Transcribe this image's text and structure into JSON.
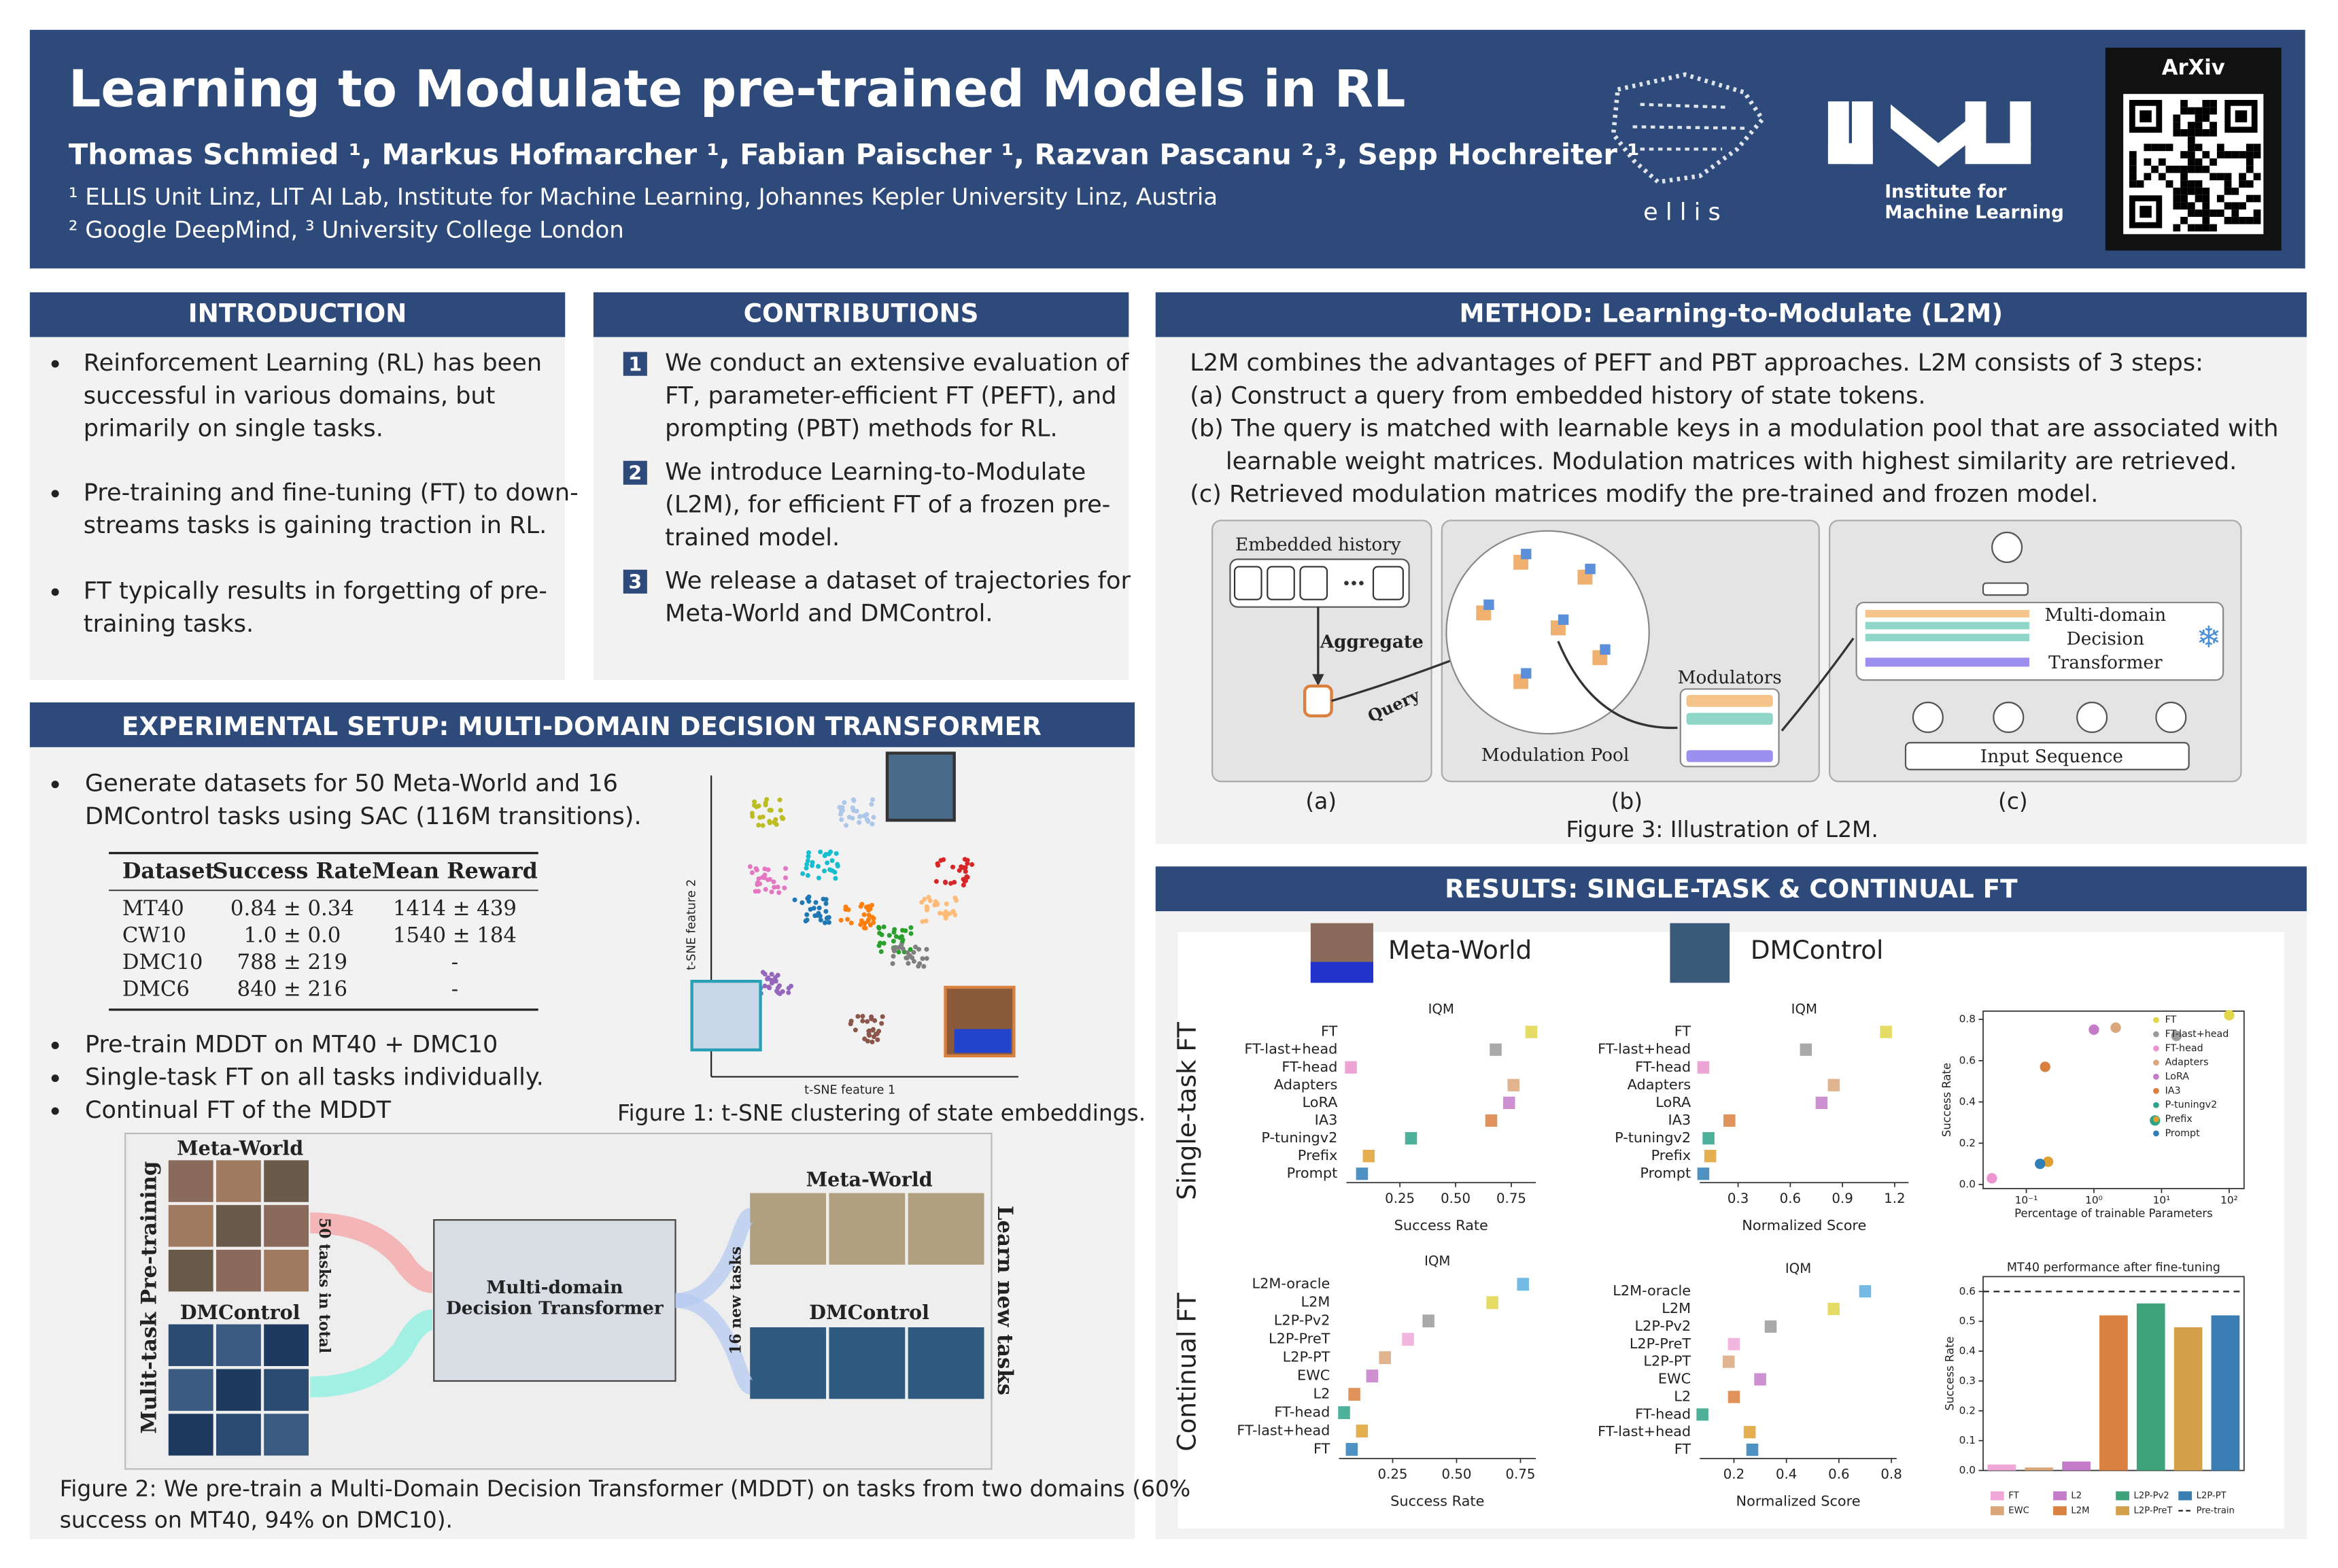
{
  "header": {
    "title": "Learning to Modulate pre-trained Models in RL",
    "authors": "Thomas Schmied ¹, Markus Hofmarcher ¹, Fabian Paischer ¹, Razvan Pascanu ²,³, Sepp Hochreiter ¹",
    "affiliations": [
      "¹ ELLIS Unit Linz, LIT AI Lab, Institute for Machine Learning, Johannes Kepler University Linz, Austria",
      "² Google DeepMind, ³ University College London"
    ],
    "ellis": "e l l i s",
    "jku": [
      "Institute for",
      "Machine Learning"
    ],
    "arxiv": "ArXiv"
  },
  "introduction": {
    "heading": "INTRODUCTION",
    "bullets": [
      [
        "Reinforcement Learning (RL) has been",
        "successful in various domains, but",
        "primarily on single tasks."
      ],
      [
        "Pre-training and fine-tuning (FT) to down-",
        "streams tasks is gaining traction in RL."
      ],
      [
        "FT typically results in forgetting of pre-",
        "training tasks."
      ]
    ]
  },
  "contributions": {
    "heading": "CONTRIBUTIONS",
    "items": [
      {
        "number": "1",
        "lines": [
          "We conduct an extensive evaluation of",
          "FT, parameter-efficient FT (PEFT), and",
          "prompting (PBT) methods for RL."
        ]
      },
      {
        "number": "2",
        "lines": [
          "We introduce Learning-to-Modulate",
          "(L2M), for efficient FT of a frozen pre-",
          "trained model."
        ]
      },
      {
        "number": "3",
        "lines": [
          "We release a dataset of trajectories for",
          "Meta-World and DMControl."
        ]
      }
    ]
  },
  "method": {
    "heading": "METHOD: Learning-to-Modulate (L2M)",
    "lines": [
      "L2M combines the advantages of PEFT and PBT approaches. L2M consists of 3 steps:",
      "(a) Construct a query from embedded history of state tokens.",
      "(b) The query is matched with learnable keys in a modulation pool that are associated with",
      "learnable weight matrices. Modulation matrices with highest similarity are retrieved.",
      "(c) Retrieved modulation matrices modify the pre-trained and frozen model."
    ],
    "figure": {
      "embedded_history": "Embedded history",
      "aggregate": "Aggregate",
      "query": "Query",
      "modulation_pool": "Modulation Pool",
      "modulators": "Modulators",
      "transformer": [
        "Multi-domain",
        "Decision",
        "Transformer"
      ],
      "input_sequence": "Input Sequence",
      "panels": [
        "(a)",
        "(b)",
        "(c)"
      ],
      "caption": "Figure 3: Illustration of L2M."
    }
  },
  "setup": {
    "heading": "EXPERIMENTAL SETUP: MULTI-DOMAIN DECISION TRANSFORMER",
    "bullets_top": [
      [
        "Generate datasets for 50 Meta-World and 16",
        "DMControl tasks using SAC (116M transitions)."
      ]
    ],
    "table": {
      "header": [
        "Dataset",
        "Success Rate",
        "Mean Reward"
      ],
      "rows": [
        [
          "MT40",
          "0.84 ± 0.34",
          "1414 ± 439"
        ],
        [
          "CW10",
          "1.0 ± 0.0",
          "1540 ± 184"
        ],
        [
          "DMC10",
          "788 ± 219",
          "-"
        ],
        [
          "DMC6",
          "840 ± 216",
          "-"
        ]
      ]
    },
    "bullets_bottom": [
      "Pre-train MDDT on MT40 + DMC10",
      "Single-task FT on all tasks individually.",
      "Continual FT of the MDDT"
    ],
    "figure1": {
      "xlabel": "t-SNE feature 1",
      "ylabel": "t-SNE feature 2",
      "caption": "Figure 1: t-SNE clustering of state embeddings."
    },
    "figure2": {
      "meta_world_left": "Meta-World",
      "dmcontrol_left": "DMControl",
      "pretraining": "Mulit-task Pre-training",
      "tasks_total": "50 tasks in total",
      "model": [
        "Multi-domain",
        "Decision Transformer"
      ],
      "new_tasks": "16 new tasks",
      "meta_world_right": "Meta-World",
      "dmcontrol_right": "DMControl",
      "learn": "Learn new tasks",
      "caption": [
        "Figure 2: We pre-train a Multi-Domain Decision Transformer (MDDT) on tasks from two domains (60%",
        "success on MT40, 94% on DMC10)."
      ]
    }
  },
  "results": {
    "heading": "RESULTS: SINGLE-TASK & CONTINUAL FT",
    "columns": [
      "Meta-World",
      "DMControl"
    ],
    "rows": [
      "Single-task FT",
      "Continual FT"
    ]
  },
  "chart_data": [
    {
      "type": "bar",
      "orientation": "horizontal",
      "title": "IQM",
      "xlabel": "Success Rate",
      "categories": [
        "FT",
        "FT-last+head",
        "FT-head",
        "Adapters",
        "LoRA",
        "IA3",
        "P-tuningv2",
        "Prefix",
        "Prompt"
      ],
      "values": [
        0.84,
        0.68,
        0.03,
        0.76,
        0.74,
        0.66,
        0.3,
        0.11,
        0.08
      ],
      "colors": [
        "#e2d64a",
        "#9a9a9a",
        "#ec94cf",
        "#d9a77a",
        "#c47cc9",
        "#d9803e",
        "#2ea38a",
        "#e0a030",
        "#2f7fb8"
      ],
      "xlim": [
        0.01,
        0.86
      ],
      "xticks": [
        0.25,
        {
          "value": 0.5,
          "label": "0.50"
        },
        0.75
      ]
    },
    {
      "type": "bar",
      "orientation": "horizontal",
      "title": "IQM",
      "xlabel": "Normalized Score",
      "categories": [
        "FT",
        "FT-last+head",
        "FT-head",
        "Adapters",
        "LoRA",
        "IA3",
        "P-tuningv2",
        "Prefix",
        "Prompt"
      ],
      "values": [
        1.15,
        0.69,
        0.1,
        0.85,
        0.78,
        0.25,
        0.13,
        0.14,
        0.1
      ],
      "colors": [
        "#e2d64a",
        "#9a9a9a",
        "#ec94cf",
        "#d9a77a",
        "#c47cc9",
        "#d9803e",
        "#2ea38a",
        "#e0a030",
        "#2f7fb8"
      ],
      "xlim": [
        0.08,
        1.28
      ],
      "xticks": [
        0.3,
        0.6,
        0.9,
        1.2
      ]
    },
    {
      "type": "bar",
      "orientation": "horizontal",
      "title": "IQM",
      "xlabel": "Success Rate",
      "categories": [
        "L2M-oracle",
        "L2M",
        "L2P-Pv2",
        "L2P-PreT",
        "L2P-PT",
        "EWC",
        "L2",
        "FT-head",
        "FT-last+head",
        "FT"
      ],
      "values": [
        0.76,
        0.64,
        0.39,
        0.31,
        0.22,
        0.17,
        0.1,
        0.06,
        0.13,
        0.09
      ],
      "colors": [
        "#5aaee0",
        "#e2d64a",
        "#9a9a9a",
        "#f0a8d8",
        "#d9a77a",
        "#c47cc9",
        "#d9803e",
        "#2ea38a",
        "#e0a030",
        "#2f7fb8"
      ],
      "xlim": [
        0.04,
        0.81
      ],
      "xticks": [
        0.25,
        {
          "value": 0.5,
          "label": "0.50"
        },
        0.75
      ]
    },
    {
      "type": "bar",
      "orientation": "horizontal",
      "title": "IQM",
      "xlabel": "Normalized Score",
      "categories": [
        "L2M-oracle",
        "L2M",
        "L2P-Pv2",
        "L2P-PreT",
        "L2P-PT",
        "EWC",
        "L2",
        "FT-head",
        "FT-last+head",
        "FT"
      ],
      "values": [
        0.7,
        0.58,
        0.34,
        0.2,
        0.18,
        0.3,
        0.2,
        0.08,
        0.26,
        0.27
      ],
      "colors": [
        "#5aaee0",
        "#e2d64a",
        "#9a9a9a",
        "#f0a8d8",
        "#d9a77a",
        "#c47cc9",
        "#d9803e",
        "#2ea38a",
        "#e0a030",
        "#2f7fb8"
      ],
      "xlim": [
        0.07,
        0.82
      ],
      "xticks": [
        0.2,
        0.4,
        0.6,
        0.8
      ]
    },
    {
      "type": "scatter",
      "xlabel": "Percentage of trainable Parameters",
      "ylabel": "Success Rate",
      "xscale": "log",
      "categories": [
        "FT",
        "FT-last+head",
        "FT-head",
        "Adapters",
        "LoRA",
        "IA3",
        "P-tuningv2",
        "Prefix",
        "Prompt"
      ],
      "x": [
        100,
        16.6,
        0.031,
        2.1,
        1,
        0.19,
        8,
        0.21,
        0.16
      ],
      "values": [
        0.82,
        0.72,
        0.03,
        0.76,
        0.75,
        0.57,
        0.31,
        0.11,
        0.1
      ],
      "colors": [
        "#e2d64a",
        "#9a9a9a",
        "#ec94cf",
        "#d9a77a",
        "#c47cc9",
        "#d9803e",
        "#2ea38a",
        "#e0a030",
        "#2f7fb8"
      ],
      "xlim": [
        0.023,
        166
      ],
      "xticks": [
        {
          "value": 0.1,
          "label": "10⁻¹"
        },
        {
          "value": 1,
          "label": "10⁰"
        },
        {
          "value": 10,
          "label": "10¹"
        },
        {
          "value": 100,
          "label": "10²"
        }
      ],
      "ylim": [
        -0.02,
        0.84
      ],
      "yticks": [
        {
          "value": 0,
          "label": "0.0"
        },
        0.2,
        0.4,
        0.6,
        0.8
      ]
    },
    {
      "type": "bar",
      "title": "MT40 performance after fine-tuning",
      "ylabel": "Success Rate",
      "categories": [
        "FT",
        "EWC",
        "L2",
        "L2M",
        "L2P-Pv2",
        "L2P-PreT",
        "L2P-PT"
      ],
      "values": [
        0.02,
        0.01,
        0.03,
        0.52,
        0.56,
        0.48,
        0.52
      ],
      "colors": [
        "#f0a8d8",
        "#d9a77a",
        "#c47cc9",
        "#d9813e",
        "#3fa37a",
        "#d4a04a",
        "#3a7fb3"
      ],
      "reference": {
        "name": "Pre-train",
        "value": 0.6
      },
      "ylim": [
        0,
        0.65
      ],
      "yticks": [
        {
          "value": 0,
          "label": "0.0"
        },
        0.1,
        0.2,
        0.3,
        0.4,
        0.5,
        0.6
      ]
    }
  ]
}
